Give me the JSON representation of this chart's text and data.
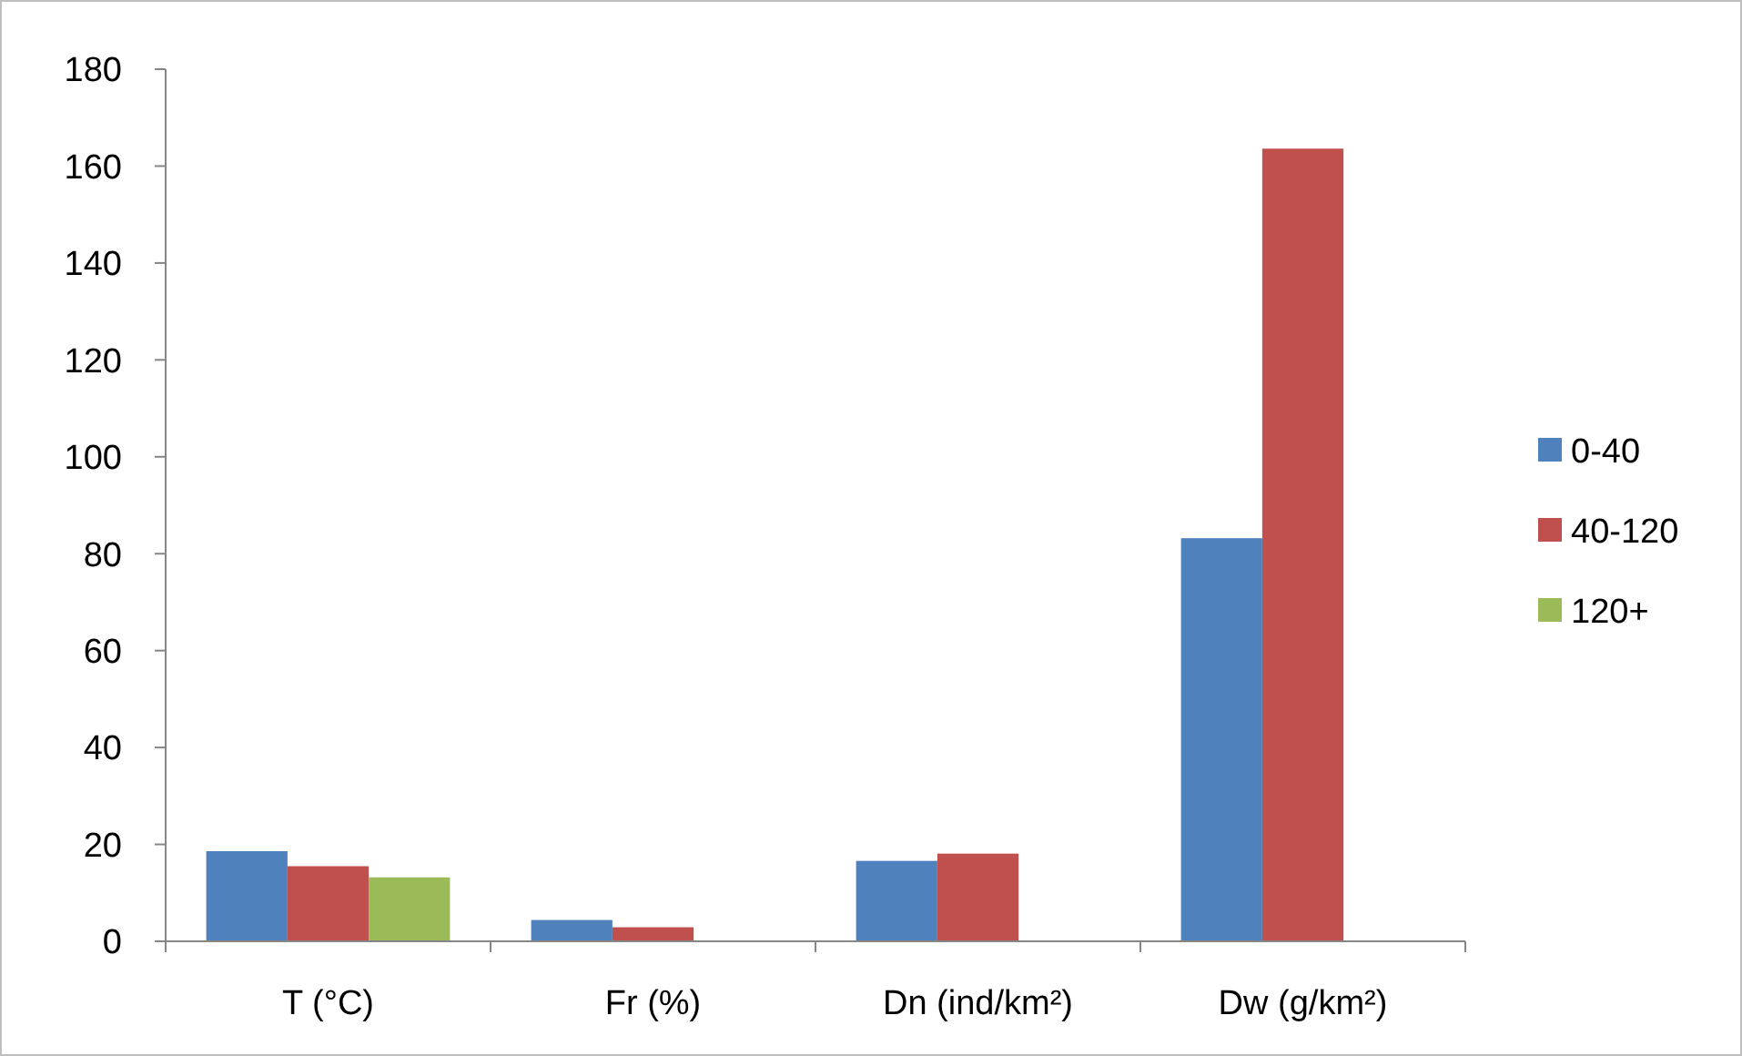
{
  "chart_data": {
    "type": "bar",
    "categories": [
      "T (°C)",
      "Fr (%)",
      "Dn (ind/km²)",
      "Dw (g/km²)"
    ],
    "series": [
      {
        "name": "0-40",
        "color": "#4f81bd",
        "values": [
          18.6,
          4.4,
          16.6,
          83.2
        ]
      },
      {
        "name": "40-120",
        "color": "#c0504d",
        "values": [
          15.5,
          2.9,
          18.1,
          163.6
        ]
      },
      {
        "name": "120+",
        "color": "#9bbb59",
        "values": [
          13.2,
          null,
          null,
          null
        ]
      }
    ],
    "ylim": [
      0,
      180
    ],
    "yticks": [
      0,
      20,
      40,
      60,
      80,
      100,
      120,
      140,
      160,
      180
    ],
    "grid": false,
    "legend": "right"
  }
}
